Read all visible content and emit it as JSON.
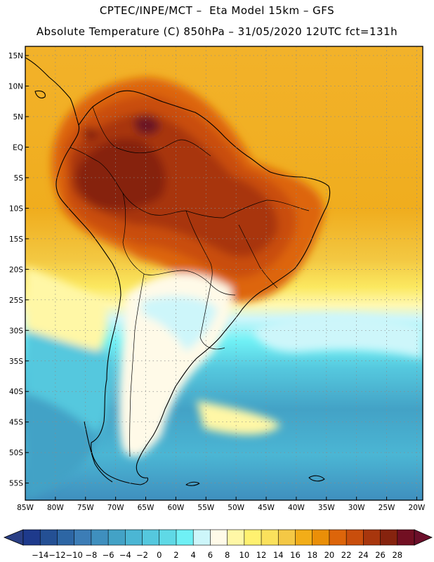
{
  "header": {
    "line1": "CPTEC/INPE/MCT –  Eta Model 15km – GFS",
    "line2": "Absolute Temperature (C) 850hPa – 31/05/2020 12UTC fct=131h"
  },
  "map": {
    "lat_labels": [
      "15N",
      "10N",
      "5N",
      "EQ",
      "5S",
      "10S",
      "15S",
      "20S",
      "25S",
      "30S",
      "35S",
      "40S",
      "45S",
      "50S",
      "55S"
    ],
    "lat_values": [
      15,
      10,
      5,
      0,
      -5,
      -10,
      -15,
      -20,
      -25,
      -30,
      -35,
      -40,
      -45,
      -50,
      -55
    ],
    "lon_labels": [
      "85W",
      "80W",
      "75W",
      "70W",
      "65W",
      "60W",
      "55W",
      "50W",
      "45W",
      "40W",
      "35W",
      "30W",
      "25W",
      "20W"
    ],
    "lon_values": [
      -85,
      -80,
      -75,
      -70,
      -65,
      -60,
      -55,
      -50,
      -45,
      -40,
      -35,
      -30,
      -25,
      -20
    ],
    "extent": {
      "lon_min": -85,
      "lon_max": -19,
      "lat_min": -57.8,
      "lat_max": 16.5
    }
  },
  "colorbar": {
    "labels": [
      "-14",
      "-12",
      "-10",
      "-8",
      "-6",
      "-4",
      "-2",
      "0",
      "2",
      "4",
      "6",
      "8",
      "10",
      "12",
      "14",
      "16",
      "18",
      "20",
      "22",
      "24",
      "26",
      "28"
    ],
    "colors": [
      "#1e3a8c",
      "#245094",
      "#2d66a4",
      "#3c7db6",
      "#3f8fbe",
      "#43a2c6",
      "#4bb6d4",
      "#55c8de",
      "#5fd9e6",
      "#6ff0f5",
      "#cdf6fa",
      "#fffae8",
      "#fff7a6",
      "#fff170",
      "#fbe15c",
      "#f4c845",
      "#f2ad18",
      "#ea8f08",
      "#dd650a",
      "#c94e0c",
      "#a8360d",
      "#86230e",
      "#720f22"
    ],
    "under_color": "#2a3f85",
    "over_color": "#6b0f2a"
  }
}
